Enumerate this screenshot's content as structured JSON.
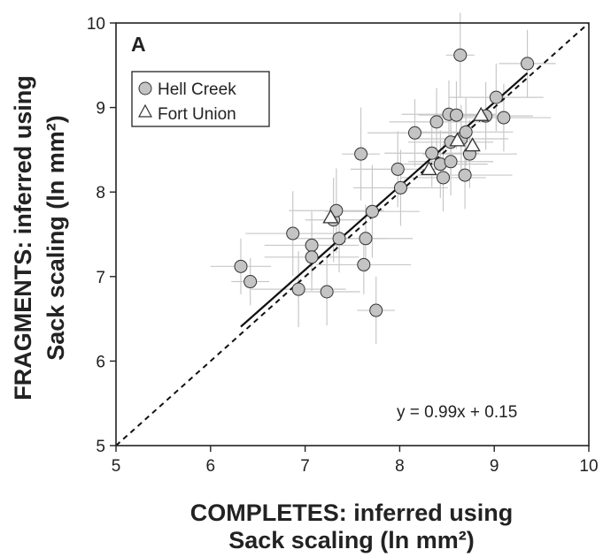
{
  "chart_data": {
    "type": "scatter",
    "panel_label": "A",
    "xlabel_lines": [
      "COMPLETES: inferred using",
      "Sack scaling (ln mm²)"
    ],
    "ylabel_lines": [
      "FRAGMENTS: inferred using",
      "Sack scaling (ln mm²)"
    ],
    "xlim": [
      5,
      10
    ],
    "ylim": [
      5,
      10
    ],
    "xticks": [
      5,
      6,
      7,
      8,
      9,
      10
    ],
    "yticks": [
      5,
      6,
      7,
      8,
      9,
      10
    ],
    "tick_labels": [
      "5",
      "6",
      "7",
      "8",
      "9",
      "10"
    ],
    "grid": false,
    "legend_position": "top-left",
    "equation": "y = 0.99x + 0.15",
    "colors": {
      "marker_fill": "#c4c4c4",
      "marker_edge": "#333333",
      "error_bar": "#c8c8c8",
      "line": "#111111"
    },
    "series": [
      {
        "name": "Hell Creek",
        "marker": "circle",
        "points": [
          {
            "x": 6.32,
            "y": 7.12,
            "xerr": 0.32,
            "yerr": 0.33
          },
          {
            "x": 6.42,
            "y": 6.94,
            "xerr": 0.2,
            "yerr": 0.28
          },
          {
            "x": 6.87,
            "y": 7.51,
            "xerr": 0.5,
            "yerr": 0.5
          },
          {
            "x": 6.93,
            "y": 6.85,
            "xerr": 0.5,
            "yerr": 0.45
          },
          {
            "x": 7.07,
            "y": 7.37,
            "xerr": 0.5,
            "yerr": 0.4
          },
          {
            "x": 7.07,
            "y": 7.23,
            "xerr": 0.5,
            "yerr": 0.4
          },
          {
            "x": 7.23,
            "y": 6.82,
            "xerr": 0.35,
            "yerr": 0.4
          },
          {
            "x": 7.3,
            "y": 7.67,
            "xerr": 0.3,
            "yerr": 0.5
          },
          {
            "x": 7.33,
            "y": 7.78,
            "xerr": 0.5,
            "yerr": 0.5
          },
          {
            "x": 7.36,
            "y": 7.45,
            "xerr": 0.5,
            "yerr": 0.4
          },
          {
            "x": 7.59,
            "y": 8.45,
            "xerr": 0.2,
            "yerr": 0.55
          },
          {
            "x": 7.62,
            "y": 7.14,
            "xerr": 0.5,
            "yerr": 0.35
          },
          {
            "x": 7.64,
            "y": 7.45,
            "xerr": 0.5,
            "yerr": 0.4
          },
          {
            "x": 7.71,
            "y": 7.77,
            "xerr": 0.5,
            "yerr": 0.55
          },
          {
            "x": 7.75,
            "y": 6.6,
            "xerr": 0.2,
            "yerr": 0.4
          },
          {
            "x": 7.98,
            "y": 8.27,
            "xerr": 0.5,
            "yerr": 0.45
          },
          {
            "x": 8.01,
            "y": 8.05,
            "xerr": 0.5,
            "yerr": 0.45
          },
          {
            "x": 8.16,
            "y": 8.7,
            "xerr": 0.5,
            "yerr": 0.4
          },
          {
            "x": 8.34,
            "y": 8.46,
            "xerr": 0.5,
            "yerr": 0.4
          },
          {
            "x": 8.39,
            "y": 8.83,
            "xerr": 0.5,
            "yerr": 0.4
          },
          {
            "x": 8.43,
            "y": 8.33,
            "xerr": 0.5,
            "yerr": 0.4
          },
          {
            "x": 8.46,
            "y": 8.17,
            "xerr": 0.45,
            "yerr": 0.4
          },
          {
            "x": 8.52,
            "y": 8.92,
            "xerr": 0.5,
            "yerr": 0.4
          },
          {
            "x": 8.54,
            "y": 8.59,
            "xerr": 0.45,
            "yerr": 0.4
          },
          {
            "x": 8.54,
            "y": 8.36,
            "xerr": 0.45,
            "yerr": 0.4
          },
          {
            "x": 8.6,
            "y": 8.91,
            "xerr": 0.4,
            "yerr": 0.4
          },
          {
            "x": 8.64,
            "y": 9.62,
            "xerr": 0.15,
            "yerr": 0.5
          },
          {
            "x": 8.65,
            "y": 8.63,
            "xerr": 0.5,
            "yerr": 0.4
          },
          {
            "x": 8.69,
            "y": 8.2,
            "xerr": 0.5,
            "yerr": 0.4
          },
          {
            "x": 8.7,
            "y": 8.71,
            "xerr": 0.5,
            "yerr": 0.4
          },
          {
            "x": 8.74,
            "y": 8.45,
            "xerr": 0.5,
            "yerr": 0.4
          },
          {
            "x": 8.91,
            "y": 8.9,
            "xerr": 0.5,
            "yerr": 0.4
          },
          {
            "x": 9.02,
            "y": 9.12,
            "xerr": 0.5,
            "yerr": 0.4
          },
          {
            "x": 9.1,
            "y": 8.88,
            "xerr": 0.5,
            "yerr": 0.4
          },
          {
            "x": 9.35,
            "y": 9.52,
            "xerr": 0.3,
            "yerr": 0.4
          }
        ]
      },
      {
        "name": "Fort Union",
        "marker": "triangle",
        "points": [
          {
            "x": 7.27,
            "y": 7.7,
            "xerr": 0.0,
            "yerr": 0.0
          },
          {
            "x": 8.31,
            "y": 8.27,
            "xerr": 0.0,
            "yerr": 0.0
          },
          {
            "x": 8.61,
            "y": 8.61,
            "xerr": 0.0,
            "yerr": 0.0
          },
          {
            "x": 8.77,
            "y": 8.55,
            "xerr": 0.0,
            "yerr": 0.0
          },
          {
            "x": 8.86,
            "y": 8.91,
            "xerr": 0.0,
            "yerr": 0.0
          }
        ]
      }
    ],
    "fit_line": {
      "slope": 0.99,
      "intercept": 0.15,
      "x_range": [
        6.32,
        9.35
      ],
      "style": "solid"
    },
    "reference_line": {
      "slope": 1,
      "intercept": 0,
      "x_range": [
        5,
        10
      ],
      "style": "dashed"
    }
  }
}
